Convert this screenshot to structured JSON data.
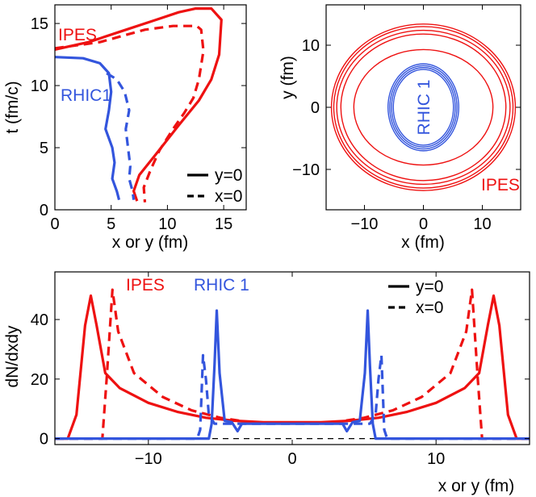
{
  "chart_data": [
    {
      "type": "line",
      "panel": "top-left",
      "xlabel": "x or y (fm)",
      "ylabel": "t (fm/c)",
      "xlim": [
        0,
        17
      ],
      "ylim": [
        0,
        16.5
      ],
      "xticks": [
        "0",
        "5",
        "10",
        "15"
      ],
      "yticks": [
        "0",
        "5",
        "10",
        "15"
      ],
      "legend": {
        "position": "bottom-right",
        "entries": [
          {
            "label": "y=0",
            "style": "solid"
          },
          {
            "label": "x=0",
            "style": "dashed"
          }
        ]
      },
      "annotations": [
        {
          "text": "IPES",
          "color": "#ee1111"
        },
        {
          "text": "RHIC1",
          "color": "#3355dd"
        }
      ],
      "series": [
        {
          "color": "#ee1111",
          "style": "solid",
          "points": [
            [
              0,
              12.9
            ],
            [
              3,
              13.5
            ],
            [
              6,
              14.4
            ],
            [
              9,
              15.3
            ],
            [
              11,
              15.9
            ],
            [
              12.5,
              16.2
            ],
            [
              13.9,
              16.2
            ],
            [
              14.8,
              15.3
            ],
            [
              14.6,
              12.5
            ],
            [
              13.9,
              10.5
            ],
            [
              12.8,
              8.8
            ],
            [
              11,
              6.8
            ],
            [
              9,
              4.5
            ],
            [
              7.5,
              2.8
            ],
            [
              7,
              1.5
            ],
            [
              7.3,
              0.7
            ]
          ]
        },
        {
          "color": "#ee1111",
          "style": "dashed",
          "points": [
            [
              0,
              13
            ],
            [
              4,
              13.5
            ],
            [
              8,
              14.5
            ],
            [
              10.5,
              14.8
            ],
            [
              12.6,
              14.8
            ],
            [
              13,
              14.5
            ],
            [
              13.2,
              12.8
            ],
            [
              12.8,
              10.5
            ],
            [
              12.3,
              9
            ],
            [
              11.5,
              7.8
            ],
            [
              10.5,
              6.5
            ],
            [
              9.3,
              4.8
            ],
            [
              8.5,
              3.2
            ],
            [
              7.9,
              1.8
            ],
            [
              8,
              0.6
            ]
          ]
        },
        {
          "color": "#3355dd",
          "style": "solid",
          "points": [
            [
              0,
              12.3
            ],
            [
              2.5,
              12.2
            ],
            [
              4,
              11.8
            ],
            [
              4.8,
              11
            ],
            [
              5,
              9.5
            ],
            [
              4.8,
              8
            ],
            [
              4.5,
              6.5
            ],
            [
              5.1,
              5
            ],
            [
              5.3,
              3.8
            ],
            [
              5.1,
              2.5
            ],
            [
              5.5,
              1.5
            ],
            [
              5.7,
              0.8
            ]
          ]
        },
        {
          "color": "#3355dd",
          "style": "dashed",
          "points": [
            [
              4.6,
              11
            ],
            [
              5.5,
              10.5
            ],
            [
              6.2,
              9.5
            ],
            [
              6.6,
              8
            ],
            [
              6.3,
              6.5
            ],
            [
              6.5,
              5
            ],
            [
              6.7,
              3.5
            ],
            [
              6.6,
              2.5
            ],
            [
              6.9,
              1.5
            ],
            [
              7,
              0.8
            ]
          ]
        }
      ]
    },
    {
      "type": "contour",
      "panel": "top-right",
      "xlabel": "x (fm)",
      "ylabel": "y (fm)",
      "xlim": [
        -16.5,
        16.5
      ],
      "ylim": [
        -16.5,
        16.5
      ],
      "xticks": [
        "−10",
        "0",
        "10"
      ],
      "yticks": [
        "−10",
        "0",
        "10"
      ],
      "annotations": [
        {
          "text": "IPES",
          "color": "#ee1111"
        },
        {
          "text": "RHIC 1",
          "color": "#3355dd",
          "rotated": true
        }
      ],
      "contours": [
        {
          "color": "#ee1111",
          "rx": 11.8,
          "ry": 9.3
        },
        {
          "color": "#ee1111",
          "rx": 14.0,
          "ry": 11.8
        },
        {
          "color": "#ee1111",
          "rx": 14.7,
          "ry": 12.4
        },
        {
          "color": "#ee1111",
          "rx": 15.2,
          "ry": 13.0
        },
        {
          "color": "#ee1111",
          "rx": 15.6,
          "ry": 13.4
        },
        {
          "color": "#3355dd",
          "rx": 5.1,
          "ry": 6.1
        },
        {
          "color": "#3355dd",
          "rx": 5.4,
          "ry": 6.4
        },
        {
          "color": "#3355dd",
          "rx": 5.7,
          "ry": 6.7
        },
        {
          "color": "#3355dd",
          "rx": 6.0,
          "ry": 7.0
        }
      ]
    },
    {
      "type": "line",
      "panel": "bottom",
      "xlabel": "x or y (fm)",
      "ylabel": "dN/dxdy",
      "xlim": [
        -16.5,
        16.5
      ],
      "ylim": [
        -2,
        56
      ],
      "xticks": [
        "−10",
        "0",
        "10"
      ],
      "yticks": [
        "0",
        "20",
        "40"
      ],
      "legend": {
        "position": "top-right",
        "entries": [
          {
            "label": "y=0",
            "style": "solid"
          },
          {
            "label": "x=0",
            "style": "dashed"
          }
        ]
      },
      "annotations": [
        {
          "text": "IPES",
          "color": "#ee1111"
        },
        {
          "text": "RHIC 1",
          "color": "#3355dd"
        }
      ],
      "series": [
        {
          "color": "#000000",
          "style": "dashed",
          "points": [
            [
              -16.5,
              0
            ],
            [
              16.5,
              0
            ]
          ]
        },
        {
          "color": "#ee1111",
          "style": "solid",
          "points": [
            [
              -16.5,
              0
            ],
            [
              -15.6,
              0
            ],
            [
              -15,
              8
            ],
            [
              -14.4,
              38
            ],
            [
              -14,
              48
            ],
            [
              -13.6,
              38
            ],
            [
              -13,
              22
            ],
            [
              -12,
              17
            ],
            [
              -10,
              12
            ],
            [
              -8,
              9
            ],
            [
              -6,
              7
            ],
            [
              -4,
              6
            ],
            [
              -2,
              5.5
            ],
            [
              0,
              5.5
            ],
            [
              2,
              5.5
            ],
            [
              4,
              6
            ],
            [
              6,
              7
            ],
            [
              8,
              9
            ],
            [
              10,
              12
            ],
            [
              12,
              17
            ],
            [
              13,
              22
            ],
            [
              13.6,
              38
            ],
            [
              14,
              48
            ],
            [
              14.4,
              38
            ],
            [
              15,
              8
            ],
            [
              15.6,
              0
            ],
            [
              16.5,
              0
            ]
          ]
        },
        {
          "color": "#ee1111",
          "style": "dashed",
          "points": [
            [
              -16.5,
              0
            ],
            [
              -13.2,
              0
            ],
            [
              -12.9,
              20
            ],
            [
              -12.5,
              50
            ],
            [
              -12.1,
              36
            ],
            [
              -11,
              22
            ],
            [
              -9,
              14
            ],
            [
              -7,
              9.5
            ],
            [
              -5,
              7
            ],
            [
              -3,
              5.5
            ],
            [
              0,
              5.2
            ],
            [
              3,
              5.5
            ],
            [
              5,
              7
            ],
            [
              7,
              9.5
            ],
            [
              9,
              14
            ],
            [
              11,
              22
            ],
            [
              12.1,
              36
            ],
            [
              12.5,
              50
            ],
            [
              12.9,
              20
            ],
            [
              13.2,
              0
            ],
            [
              16.5,
              0
            ]
          ]
        },
        {
          "color": "#3355dd",
          "style": "solid",
          "points": [
            [
              -16.5,
              0
            ],
            [
              -5.8,
              0
            ],
            [
              -5.6,
              5
            ],
            [
              -5.4,
              25
            ],
            [
              -5.25,
              43
            ],
            [
              -5.05,
              22
            ],
            [
              -4.7,
              6
            ],
            [
              -4.2,
              5.5
            ],
            [
              -3.8,
              2.5
            ],
            [
              -3.5,
              5
            ],
            [
              -2,
              5
            ],
            [
              0,
              5
            ],
            [
              2,
              5
            ],
            [
              3.5,
              5
            ],
            [
              3.8,
              2.5
            ],
            [
              4.2,
              5.5
            ],
            [
              4.7,
              6
            ],
            [
              5.05,
              22
            ],
            [
              5.25,
              43
            ],
            [
              5.4,
              25
            ],
            [
              5.6,
              5
            ],
            [
              5.8,
              0
            ],
            [
              16.5,
              0
            ]
          ]
        },
        {
          "color": "#3355dd",
          "style": "dashed",
          "points": [
            [
              -16.5,
              0
            ],
            [
              -6.6,
              0
            ],
            [
              -6.4,
              3
            ],
            [
              -6.2,
              28
            ],
            [
              -6.0,
              20
            ],
            [
              -5.8,
              8
            ],
            [
              -5.4,
              5
            ],
            [
              0,
              5
            ],
            [
              5.4,
              5
            ],
            [
              5.8,
              8
            ],
            [
              6.0,
              20
            ],
            [
              6.2,
              28
            ],
            [
              6.4,
              3
            ],
            [
              6.6,
              0
            ],
            [
              16.5,
              0
            ]
          ]
        }
      ]
    }
  ]
}
